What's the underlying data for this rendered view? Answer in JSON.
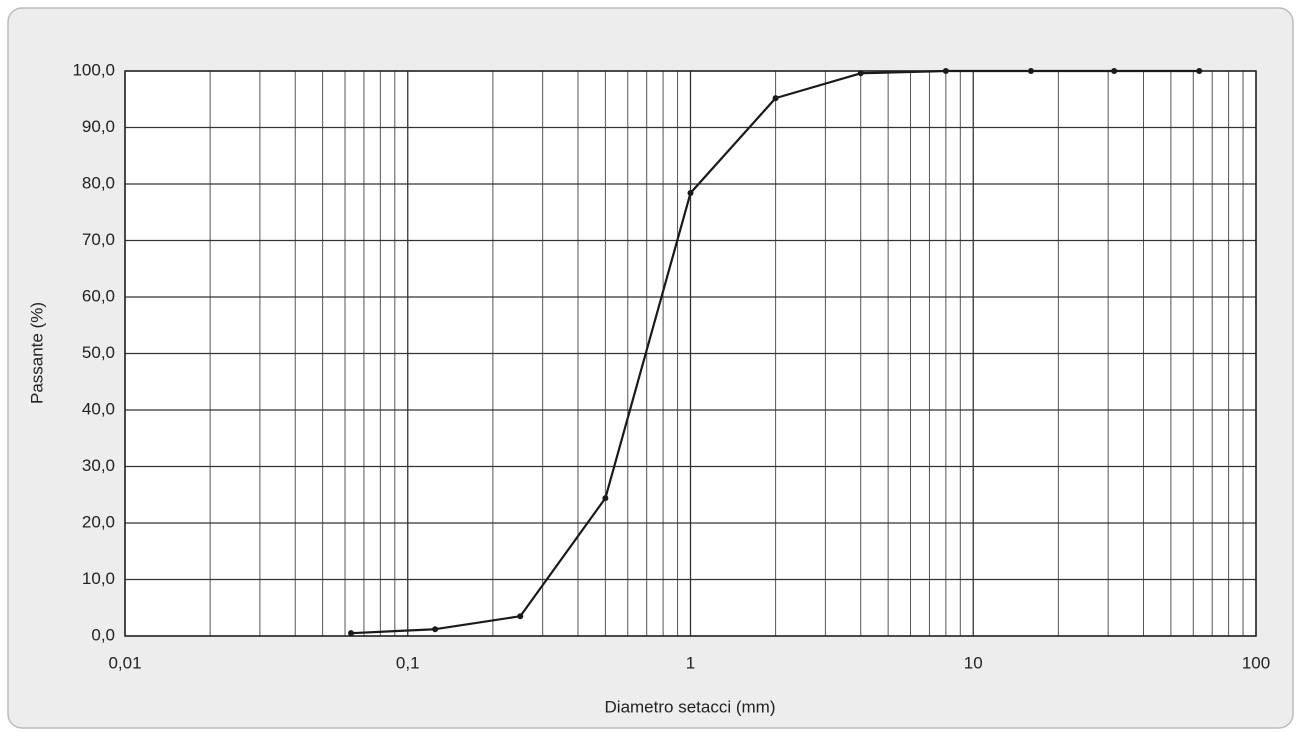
{
  "chart_data": {
    "type": "line",
    "xlabel": "Diametro setacci (mm)",
    "ylabel": "Passante (%)",
    "x": [
      0.063,
      0.125,
      0.25,
      0.5,
      1,
      2,
      4,
      8,
      16,
      31.5,
      63
    ],
    "series": [
      {
        "name": null,
        "color": "#1a1a1a",
        "values": [
          0.5,
          1.2,
          3.5,
          24.4,
          78.4,
          95.2,
          99.6,
          100,
          100,
          100,
          100
        ]
      }
    ],
    "xscale": "log",
    "xlim": [
      0.01,
      100
    ],
    "xticks": [
      {
        "value": 0.01,
        "label": "0,01"
      },
      {
        "value": 0.1,
        "label": "0,1"
      },
      1,
      10,
      100
    ],
    "ylim": [
      0,
      100
    ],
    "yticks": [
      {
        "value": 0,
        "label": "0,0"
      },
      {
        "value": 10,
        "label": "10,0"
      },
      {
        "value": 20,
        "label": "20,0"
      },
      {
        "value": 30,
        "label": "30,0"
      },
      {
        "value": 40,
        "label": "40,0"
      },
      {
        "value": 50,
        "label": "50,0"
      },
      {
        "value": 60,
        "label": "60,0"
      },
      {
        "value": 70,
        "label": "70,0"
      },
      {
        "value": 80,
        "label": "80,0"
      },
      {
        "value": 90,
        "label": "90,0"
      },
      {
        "value": 100,
        "label": "100,0"
      }
    ],
    "grid": true,
    "minor_grid": true
  }
}
